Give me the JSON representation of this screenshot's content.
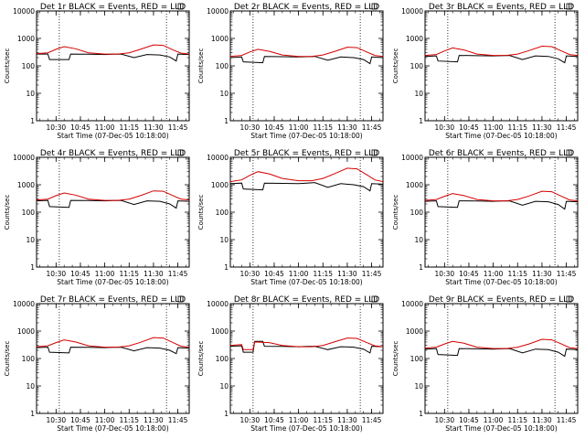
{
  "chart_data": [
    {
      "type": "line",
      "title": "Det 1r BLACK = Events, RED = LLD",
      "xlabel": "Start Time (07-Dec-05 10:18:00)",
      "ylabel": "Counts/sec",
      "yscale": "log",
      "ylim": [
        1,
        10000
      ],
      "xlim": [
        "10:18",
        "11:52"
      ],
      "x_ticks": [
        "10:30",
        "10:45",
        "11:00",
        "11:15",
        "11:30",
        "11:45"
      ],
      "y_ticks": [
        "1",
        "10",
        "100",
        "1000",
        "10000"
      ],
      "vlines_dotted": [
        "10:32",
        "11:38"
      ],
      "grid": false,
      "series": [
        {
          "color": "#000000",
          "x": [
            "10:18",
            "10:25",
            "10:26",
            "10:38",
            "10:39",
            "10:50",
            "11:00",
            "11:05",
            "11:10",
            "11:18",
            "11:26",
            "11:34",
            "11:40",
            "11:44",
            "11:45",
            "11:52"
          ],
          "values": [
            270,
            270,
            170,
            170,
            270,
            265,
            260,
            265,
            270,
            200,
            260,
            250,
            210,
            150,
            270,
            260
          ]
        },
        {
          "color": "#d40000",
          "x": [
            "10:18",
            "10:25",
            "10:30",
            "10:35",
            "10:42",
            "10:50",
            "11:00",
            "11:08",
            "11:15",
            "11:22",
            "11:30",
            "11:36",
            "11:42",
            "11:47",
            "11:52"
          ],
          "values": [
            280,
            300,
            400,
            500,
            420,
            300,
            270,
            270,
            300,
            400,
            580,
            560,
            380,
            290,
            270
          ]
        }
      ]
    },
    {
      "type": "line",
      "title": "Det 2r BLACK = Events, RED = LLD",
      "xlabel": "Start Time (07-Dec-05 10:18:00)",
      "ylabel": "Counts/sec",
      "yscale": "log",
      "ylim": [
        1,
        10000
      ],
      "xlim": [
        "10:18",
        "11:52"
      ],
      "x_ticks": [
        "10:30",
        "10:45",
        "11:00",
        "11:15",
        "11:30",
        "11:45"
      ],
      "y_ticks": [
        "1",
        "10",
        "100",
        "1000",
        "10000"
      ],
      "vlines_dotted": [
        "10:32",
        "11:38"
      ],
      "grid": false,
      "series": [
        {
          "color": "#000000",
          "x": [
            "10:18",
            "10:25",
            "10:26",
            "10:38",
            "10:39",
            "10:50",
            "11:00",
            "11:05",
            "11:10",
            "11:18",
            "11:26",
            "11:34",
            "11:40",
            "11:44",
            "11:45",
            "11:52"
          ],
          "values": [
            200,
            210,
            140,
            130,
            220,
            215,
            210,
            215,
            220,
            160,
            210,
            200,
            170,
            120,
            210,
            200
          ]
        },
        {
          "color": "#d40000",
          "x": [
            "10:18",
            "10:25",
            "10:30",
            "10:35",
            "10:42",
            "10:50",
            "11:00",
            "11:08",
            "11:15",
            "11:22",
            "11:30",
            "11:36",
            "11:42",
            "11:47",
            "11:52"
          ],
          "values": [
            220,
            240,
            320,
            400,
            340,
            250,
            220,
            220,
            250,
            330,
            480,
            460,
            320,
            240,
            220
          ]
        }
      ]
    },
    {
      "type": "line",
      "title": "Det 3r BLACK = Events, RED = LLD",
      "xlabel": "Start Time (07-Dec-05 10:18:00)",
      "ylabel": "Counts/sec",
      "yscale": "log",
      "ylim": [
        1,
        10000
      ],
      "xlim": [
        "10:18",
        "11:52"
      ],
      "x_ticks": [
        "10:30",
        "10:45",
        "11:00",
        "11:15",
        "11:30",
        "11:45"
      ],
      "y_ticks": [
        "1",
        "10",
        "100",
        "1000",
        "10000"
      ],
      "vlines_dotted": [
        "10:32",
        "11:38"
      ],
      "grid": false,
      "series": [
        {
          "color": "#000000",
          "x": [
            "10:18",
            "10:25",
            "10:26",
            "10:38",
            "10:39",
            "10:50",
            "11:00",
            "11:05",
            "11:10",
            "11:18",
            "11:26",
            "11:34",
            "11:40",
            "11:44",
            "11:45",
            "11:52"
          ],
          "values": [
            220,
            230,
            150,
            140,
            240,
            235,
            230,
            235,
            240,
            170,
            230,
            220,
            180,
            130,
            230,
            220
          ]
        },
        {
          "color": "#d40000",
          "x": [
            "10:18",
            "10:25",
            "10:30",
            "10:35",
            "10:42",
            "10:50",
            "11:00",
            "11:08",
            "11:15",
            "11:22",
            "11:30",
            "11:36",
            "11:42",
            "11:47",
            "11:52"
          ],
          "values": [
            240,
            260,
            350,
            450,
            380,
            270,
            240,
            240,
            270,
            360,
            520,
            500,
            350,
            260,
            240
          ]
        }
      ]
    },
    {
      "type": "line",
      "title": "Det 4r BLACK = Events, RED = LLD",
      "xlabel": "Start Time (07-Dec-05 10:18:00)",
      "ylabel": "Counts/sec",
      "yscale": "log",
      "ylim": [
        1,
        10000
      ],
      "xlim": [
        "10:18",
        "11:52"
      ],
      "x_ticks": [
        "10:30",
        "10:45",
        "11:00",
        "11:15",
        "11:30",
        "11:45"
      ],
      "y_ticks": [
        "1",
        "10",
        "100",
        "1000",
        "10000"
      ],
      "vlines_dotted": [
        "10:32",
        "11:38"
      ],
      "grid": false,
      "series": [
        {
          "color": "#000000",
          "x": [
            "10:18",
            "10:25",
            "10:26",
            "10:38",
            "10:39",
            "10:50",
            "11:00",
            "11:05",
            "11:10",
            "11:18",
            "11:26",
            "11:34",
            "11:40",
            "11:44",
            "11:45",
            "11:52"
          ],
          "values": [
            260,
            270,
            160,
            150,
            270,
            265,
            260,
            265,
            270,
            190,
            260,
            250,
            200,
            140,
            260,
            250
          ]
        },
        {
          "color": "#d40000",
          "x": [
            "10:18",
            "10:25",
            "10:30",
            "10:35",
            "10:42",
            "10:50",
            "11:00",
            "11:08",
            "11:15",
            "11:22",
            "11:30",
            "11:36",
            "11:42",
            "11:47",
            "11:52"
          ],
          "values": [
            280,
            300,
            400,
            500,
            420,
            300,
            270,
            270,
            300,
            400,
            600,
            580,
            400,
            300,
            280
          ]
        }
      ]
    },
    {
      "type": "line",
      "title": "Det 5r BLACK = Events, RED = LLD",
      "xlabel": "Start Time (07-Dec-05 10:18:00)",
      "ylabel": "Counts/sec",
      "yscale": "log",
      "ylim": [
        1,
        10000
      ],
      "xlim": [
        "10:18",
        "11:52"
      ],
      "x_ticks": [
        "10:30",
        "10:45",
        "11:00",
        "11:15",
        "11:30",
        "11:45"
      ],
      "y_ticks": [
        "1",
        "10",
        "100",
        "1000",
        "10000"
      ],
      "vlines_dotted": [
        "10:32",
        "11:38"
      ],
      "grid": false,
      "series": [
        {
          "color": "#000000",
          "x": [
            "10:18",
            "10:25",
            "10:26",
            "10:38",
            "10:39",
            "10:50",
            "11:00",
            "11:05",
            "11:10",
            "11:18",
            "11:26",
            "11:34",
            "11:40",
            "11:44",
            "11:45",
            "11:52"
          ],
          "values": [
            1100,
            1150,
            700,
            650,
            1150,
            1120,
            1100,
            1150,
            1200,
            800,
            1100,
            1000,
            850,
            600,
            1100,
            1050
          ]
        },
        {
          "color": "#d40000",
          "x": [
            "10:18",
            "10:25",
            "10:30",
            "10:35",
            "10:42",
            "10:50",
            "11:00",
            "11:08",
            "11:15",
            "11:22",
            "11:30",
            "11:36",
            "11:42",
            "11:47",
            "11:52"
          ],
          "values": [
            1300,
            1500,
            2200,
            3000,
            2500,
            1700,
            1400,
            1400,
            1700,
            2500,
            4000,
            3800,
            2300,
            1500,
            1300
          ]
        }
      ]
    },
    {
      "type": "line",
      "title": "Det 6r BLACK = Events, RED = LLD",
      "xlabel": "Start Time (07-Dec-05 10:18:00)",
      "ylabel": "Counts/sec",
      "yscale": "log",
      "ylim": [
        1,
        10000
      ],
      "xlim": [
        "10:18",
        "11:52"
      ],
      "x_ticks": [
        "10:30",
        "10:45",
        "11:00",
        "11:15",
        "11:30",
        "11:45"
      ],
      "y_ticks": [
        "1",
        "10",
        "100",
        "1000",
        "10000"
      ],
      "vlines_dotted": [
        "10:32",
        "11:38"
      ],
      "grid": false,
      "series": [
        {
          "color": "#000000",
          "x": [
            "10:18",
            "10:25",
            "10:26",
            "10:38",
            "10:39",
            "10:50",
            "11:00",
            "11:05",
            "11:10",
            "11:18",
            "11:26",
            "11:34",
            "11:40",
            "11:44",
            "11:45",
            "11:52"
          ],
          "values": [
            250,
            260,
            160,
            150,
            260,
            255,
            250,
            255,
            260,
            180,
            250,
            240,
            190,
            130,
            250,
            240
          ]
        },
        {
          "color": "#d40000",
          "x": [
            "10:18",
            "10:25",
            "10:30",
            "10:35",
            "10:42",
            "10:50",
            "11:00",
            "11:08",
            "11:15",
            "11:22",
            "11:30",
            "11:36",
            "11:42",
            "11:47",
            "11:52"
          ],
          "values": [
            270,
            290,
            380,
            480,
            400,
            290,
            260,
            260,
            290,
            390,
            580,
            560,
            380,
            280,
            260
          ]
        }
      ]
    },
    {
      "type": "line",
      "title": "Det 7r BLACK = Events, RED = LLD",
      "xlabel": "Start Time (07-Dec-05 10:18:00)",
      "ylabel": "Counts/sec",
      "yscale": "log",
      "ylim": [
        1,
        10000
      ],
      "xlim": [
        "10:18",
        "11:52"
      ],
      "x_ticks": [
        "10:30",
        "10:45",
        "11:00",
        "11:15",
        "11:30",
        "11:45"
      ],
      "y_ticks": [
        "1",
        "10",
        "100",
        "1000",
        "10000"
      ],
      "vlines_dotted": [
        "10:32",
        "11:38"
      ],
      "grid": false,
      "series": [
        {
          "color": "#000000",
          "x": [
            "10:18",
            "10:25",
            "10:26",
            "10:38",
            "10:39",
            "10:50",
            "11:00",
            "11:05",
            "11:10",
            "11:18",
            "11:26",
            "11:34",
            "11:40",
            "11:44",
            "11:45",
            "11:52"
          ],
          "values": [
            250,
            260,
            170,
            160,
            260,
            255,
            250,
            255,
            260,
            190,
            250,
            240,
            200,
            150,
            250,
            240
          ]
        },
        {
          "color": "#d40000",
          "x": [
            "10:18",
            "10:25",
            "10:30",
            "10:35",
            "10:42",
            "10:50",
            "11:00",
            "11:08",
            "11:15",
            "11:22",
            "11:30",
            "11:36",
            "11:42",
            "11:47",
            "11:52"
          ],
          "values": [
            270,
            290,
            380,
            480,
            400,
            290,
            260,
            260,
            290,
            390,
            580,
            560,
            380,
            280,
            260
          ]
        }
      ]
    },
    {
      "type": "line",
      "title": "Det 8r BLACK = Events, RED = LLD",
      "xlabel": "Start Time (07-Dec-05 10:18:00)",
      "ylabel": "Counts/sec",
      "yscale": "log",
      "ylim": [
        1,
        10000
      ],
      "xlim": [
        "10:18",
        "11:52"
      ],
      "x_ticks": [
        "10:30",
        "10:45",
        "11:00",
        "11:15",
        "11:30",
        "11:45"
      ],
      "y_ticks": [
        "1",
        "10",
        "100",
        "1000",
        "10000"
      ],
      "vlines_dotted": [
        "10:32",
        "11:38"
      ],
      "grid": false,
      "series": [
        {
          "color": "#000000",
          "x": [
            "10:18",
            "10:25",
            "10:26",
            "10:32",
            "10:33",
            "10:38",
            "10:39",
            "10:50",
            "11:00",
            "11:05",
            "11:10",
            "11:18",
            "11:26",
            "11:34",
            "11:40",
            "11:44",
            "11:45",
            "11:52"
          ],
          "values": [
            280,
            290,
            170,
            170,
            420,
            420,
            280,
            275,
            270,
            275,
            280,
            210,
            270,
            260,
            220,
            160,
            280,
            270
          ]
        },
        {
          "color": "#d40000",
          "x": [
            "10:18",
            "10:25",
            "10:26",
            "10:32",
            "10:33",
            "10:42",
            "10:50",
            "11:00",
            "11:08",
            "11:15",
            "11:22",
            "11:30",
            "11:36",
            "11:42",
            "11:47",
            "11:52"
          ],
          "values": [
            300,
            320,
            210,
            210,
            400,
            380,
            300,
            270,
            270,
            300,
            400,
            560,
            540,
            380,
            290,
            270
          ]
        }
      ]
    },
    {
      "type": "line",
      "title": "Det 9r BLACK = Events, RED = LLD",
      "xlabel": "Start Time (07-Dec-05 10:18:00)",
      "ylabel": "Counts/sec",
      "yscale": "log",
      "ylim": [
        1,
        10000
      ],
      "xlim": [
        "10:18",
        "11:52"
      ],
      "x_ticks": [
        "10:30",
        "10:45",
        "11:00",
        "11:15",
        "11:30",
        "11:45"
      ],
      "y_ticks": [
        "1",
        "10",
        "100",
        "1000",
        "10000"
      ],
      "vlines_dotted": [
        "10:32",
        "11:38"
      ],
      "grid": false,
      "series": [
        {
          "color": "#000000",
          "x": [
            "10:18",
            "10:25",
            "10:26",
            "10:38",
            "10:39",
            "10:50",
            "11:00",
            "11:05",
            "11:10",
            "11:18",
            "11:26",
            "11:34",
            "11:40",
            "11:44",
            "11:45",
            "11:52"
          ],
          "values": [
            220,
            230,
            140,
            130,
            230,
            225,
            220,
            225,
            230,
            160,
            220,
            210,
            170,
            120,
            220,
            210
          ]
        },
        {
          "color": "#d40000",
          "x": [
            "10:18",
            "10:25",
            "10:30",
            "10:35",
            "10:42",
            "10:50",
            "11:00",
            "11:08",
            "11:15",
            "11:22",
            "11:30",
            "11:36",
            "11:42",
            "11:47",
            "11:52"
          ],
          "values": [
            240,
            260,
            340,
            420,
            360,
            260,
            230,
            230,
            260,
            340,
            500,
            480,
            340,
            250,
            230
          ]
        }
      ]
    }
  ]
}
